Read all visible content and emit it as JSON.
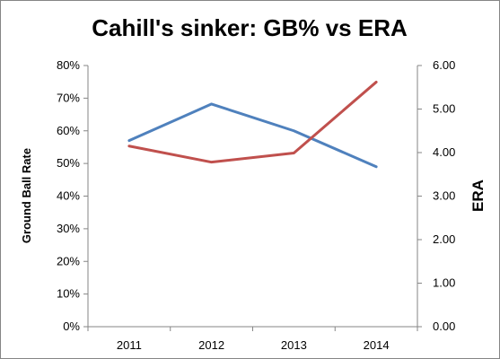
{
  "chart_data": {
    "type": "line",
    "title": "Cahill's sinker: GB% vs ERA",
    "categories": [
      "2011",
      "2012",
      "2013",
      "2014"
    ],
    "y_left": {
      "label": "Ground Ball Rate",
      "range": [
        0,
        80
      ],
      "ticks": [
        0,
        10,
        20,
        30,
        40,
        50,
        60,
        70,
        80
      ],
      "tick_labels": [
        "0%",
        "10%",
        "20%",
        "30%",
        "40%",
        "50%",
        "60%",
        "70%",
        "80%"
      ]
    },
    "y_right": {
      "label": "ERA",
      "range": [
        0,
        6
      ],
      "ticks": [
        0,
        1,
        2,
        3,
        4,
        5,
        6
      ],
      "tick_labels": [
        "0.00",
        "1.00",
        "2.00",
        "3.00",
        "4.00",
        "5.00",
        "6.00"
      ]
    },
    "series": [
      {
        "values": [
          57,
          68.2,
          60,
          49
        ],
        "axis": "left",
        "color": "#4F81BD"
      },
      {
        "values": [
          4.15,
          3.78,
          3.99,
          5.62
        ],
        "axis": "right",
        "color": "#C0504D"
      }
    ],
    "grid": false,
    "legend": "none"
  }
}
